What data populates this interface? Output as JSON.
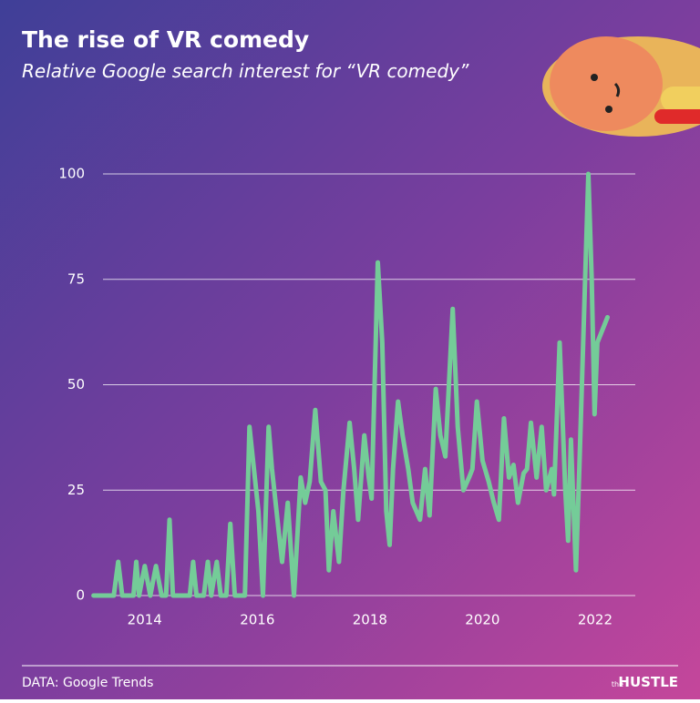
{
  "chart_data": {
    "type": "line",
    "title": "The rise of VR comedy",
    "subtitle": "Relative Google search interest for “VR comedy”",
    "source": "DATA: Google Trends",
    "brand": {
      "small": "the",
      "main": "HUSTLE"
    },
    "x": [
      2013.09,
      2013.45,
      2013.53,
      2013.6,
      2013.8,
      2013.85,
      2013.9,
      2014.0,
      2014.1,
      2014.2,
      2014.3,
      2014.38,
      2014.44,
      2014.5,
      2014.8,
      2014.86,
      2014.92,
      2015.05,
      2015.12,
      2015.18,
      2015.28,
      2015.35,
      2015.45,
      2015.52,
      2015.6,
      2015.78,
      2015.86,
      2016.02,
      2016.1,
      2016.2,
      2016.26,
      2016.39,
      2016.44,
      2016.54,
      2016.65,
      2016.77,
      2016.85,
      2016.93,
      2017.03,
      2017.13,
      2017.21,
      2017.27,
      2017.35,
      2017.45,
      2017.53,
      2017.64,
      2017.72,
      2017.79,
      2017.9,
      2017.98,
      2018.03,
      2018.14,
      2018.22,
      2018.29,
      2018.35,
      2018.41,
      2018.5,
      2018.58,
      2018.68,
      2018.76,
      2018.89,
      2018.98,
      2019.06,
      2019.17,
      2019.25,
      2019.34,
      2019.47,
      2019.56,
      2019.66,
      2019.76,
      2019.82,
      2019.9,
      2020.0,
      2020.11,
      2020.2,
      2020.29,
      2020.38,
      2020.47,
      2020.55,
      2020.63,
      2020.73,
      2020.79,
      2020.86,
      2020.96,
      2021.05,
      2021.13,
      2021.23,
      2021.27,
      2021.37,
      2021.47,
      2021.52,
      2021.57,
      2021.66,
      2021.72,
      2021.88,
      2021.94,
      2021.99,
      2022.04,
      2022.22
    ],
    "series": [
      {
        "name": "VR comedy",
        "color": "#74cc98",
        "values": [
          0,
          0,
          8,
          0,
          0,
          8,
          0,
          7,
          0,
          7,
          0,
          0,
          18,
          0,
          0,
          8,
          0,
          0,
          8,
          0,
          8,
          0,
          0,
          17,
          0,
          0,
          40,
          20,
          0,
          40,
          30,
          14,
          8,
          22,
          0,
          28,
          22,
          27,
          44,
          27,
          25,
          6,
          20,
          8,
          25,
          41,
          30,
          18,
          38,
          28,
          23,
          79,
          60,
          20,
          12,
          30,
          46,
          38,
          30,
          22,
          18,
          30,
          19,
          49,
          38,
          33,
          68,
          40,
          25,
          28,
          30,
          46,
          32,
          27,
          22,
          18,
          42,
          28,
          31,
          22,
          29,
          30,
          41,
          28,
          40,
          25,
          30,
          24,
          60,
          25,
          13,
          37,
          6,
          30,
          100,
          75,
          43,
          60,
          66
        ]
      }
    ],
    "xlim": [
      2013.0,
      2022.6
    ],
    "xticks": [
      2014,
      2016,
      2018,
      2020,
      2022
    ],
    "ylim": [
      0,
      100
    ],
    "yticks": [
      0,
      25,
      50,
      75,
      100
    ],
    "grid": true
  }
}
